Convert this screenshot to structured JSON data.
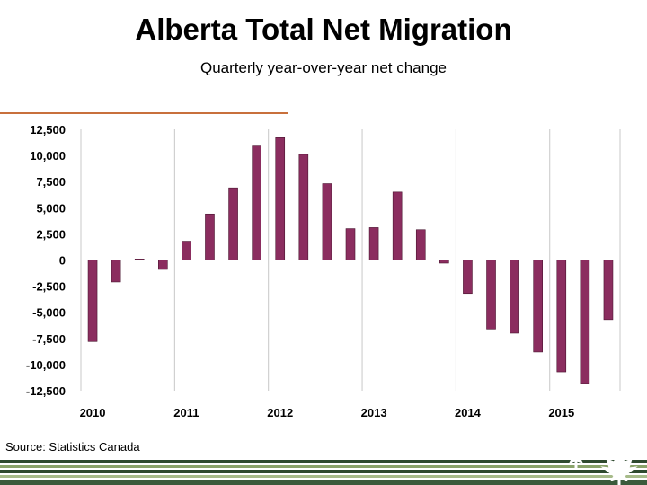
{
  "title": "Alberta Total Net Migration",
  "subtitle": "Quarterly  year-over-year net change",
  "source": "Source: Statistics Canada",
  "colors": {
    "bar": "#8b2d5f",
    "accent_rule": "#c8703c",
    "stripe_dark": "#2f4a2f",
    "stripe_light": "#8aa36a"
  },
  "logo_icon": "maple-leaf-icon",
  "chart_data": {
    "type": "bar",
    "title": "Alberta Total Net Migration",
    "subtitle": "Quarterly  year-over-year net change",
    "xlabel": "",
    "ylabel": "",
    "ylim": [
      -12500,
      12500
    ],
    "yticks": [
      12500,
      10000,
      7500,
      5000,
      2500,
      0,
      -2500,
      -5000,
      -7500,
      -10000,
      -12500
    ],
    "ytick_labels": [
      "12,500",
      "10,000",
      "7,500",
      "5,000",
      "2,500",
      "0",
      "-2,500",
      "-5,000",
      "-7,500",
      "-10,000",
      "-12,500"
    ],
    "x_labels": [
      {
        "label": "2010",
        "bar_index": 0
      },
      {
        "label": "2011",
        "bar_index": 4
      },
      {
        "label": "2012",
        "bar_index": 8
      },
      {
        "label": "2013",
        "bar_index": 12
      },
      {
        "label": "2014",
        "bar_index": 16
      },
      {
        "label": "2015",
        "bar_index": 20
      }
    ],
    "grid": "vertical",
    "legend": "none",
    "values": [
      -7800,
      -2100,
      100,
      -900,
      1800,
      4400,
      6900,
      10900,
      11700,
      10100,
      7300,
      3000,
      3100,
      6500,
      2900,
      -300,
      -3200,
      -6600,
      -7000,
      -8800,
      -10700,
      -11800,
      -5700
    ]
  }
}
